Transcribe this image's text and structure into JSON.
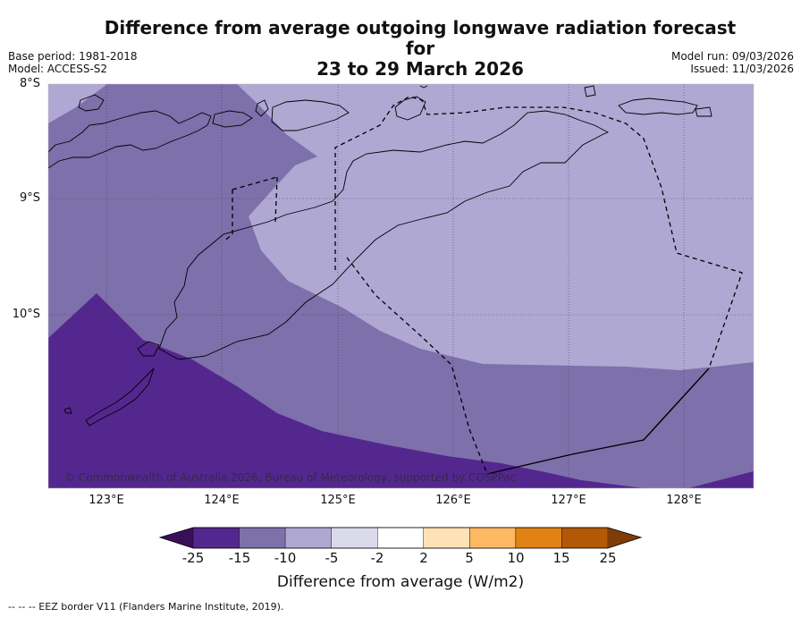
{
  "title": {
    "line1": "Difference from average outgoing longwave radiation forecast for",
    "line2": "23 to 29 March 2026"
  },
  "meta": {
    "base_period": "Base period: 1981-2018",
    "model": "Model: ACCESS-S2",
    "model_run": "Model run: 09/03/2026",
    "issued": "Issued: 11/03/2026"
  },
  "map": {
    "latitude_labels": [
      "8°S",
      "9°S",
      "10°S"
    ],
    "longitude_labels": [
      "123°E",
      "124°E",
      "125°E",
      "126°E",
      "127°E",
      "128°E"
    ],
    "copyright": "© Commonwealth of Australia 2026, Bureau of Meteorology, supported by COSPPac",
    "eez_legend": "--  --  -- EEZ border V11 (Flanders Marine Institute, 2019)."
  },
  "colorbar": {
    "labels": [
      "-25",
      "-15",
      "-10",
      "-5",
      "-2",
      "2",
      "5",
      "10",
      "15",
      "25"
    ],
    "colors": [
      "#3a0f5a",
      "#54278f",
      "#7d70ab",
      "#aea8d2",
      "#dadaeb",
      "#ffffff",
      "#fee1b4",
      "#fdb863",
      "#e08214",
      "#b35806",
      "#7f3b08"
    ],
    "title": "Difference from average (W/m2)"
  }
}
